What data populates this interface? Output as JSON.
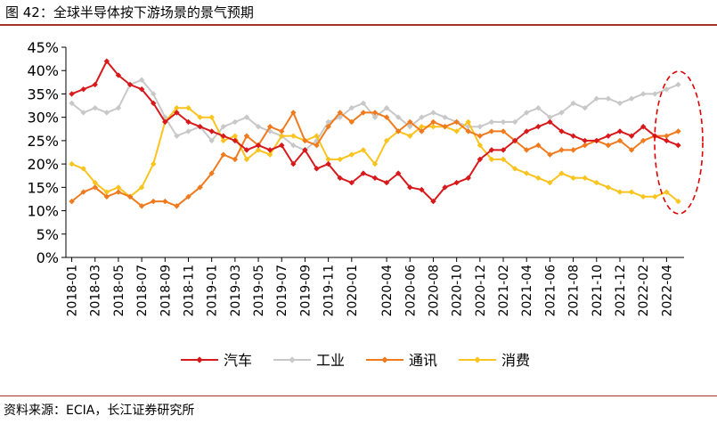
{
  "figure": {
    "title": "图 42：全球半导体按下游场景的景气预期",
    "source": "资料来源：ECIA，长江证券研究所"
  },
  "colors": {
    "auto": "#d7191c",
    "industry": "#c8c8c8",
    "comm": "#f07a1e",
    "consumer": "#fac31e",
    "rule": "#a33226",
    "highlight": "#e00000"
  },
  "chart_data": {
    "type": "line",
    "title": "",
    "xlabel": "",
    "ylabel": "",
    "ylim": [
      0,
      45
    ],
    "yticks": [
      "0%",
      "5%",
      "10%",
      "15%",
      "20%",
      "25%",
      "30%",
      "35%",
      "40%",
      "45%"
    ],
    "x": [
      "2018-01",
      "2018-02",
      "2018-03",
      "2018-04",
      "2018-05",
      "2018-06",
      "2018-07",
      "2018-08",
      "2018-09",
      "2018-10",
      "2018-11",
      "2018-12",
      "2019-01",
      "2019-02",
      "2019-03",
      "2019-04",
      "2019-05",
      "2019-06",
      "2019-07",
      "2019-08",
      "2019-09",
      "2019-10",
      "2019-11",
      "2019-12",
      "2020-01",
      "2020-02",
      "2020-03",
      "2020-04",
      "2020-05",
      "2020-06",
      "2020-07",
      "2020-08",
      "2020-09",
      "2020-10",
      "2020-11",
      "2020-12",
      "2021-01",
      "2021-02",
      "2021-03",
      "2021-04",
      "2021-05",
      "2021-06",
      "2021-07",
      "2021-08",
      "2021-09",
      "2021-10",
      "2021-11",
      "2021-12",
      "2022-01",
      "2022-02",
      "2022-03",
      "2022-04",
      "2022-05"
    ],
    "x_tick_labels": [
      "2018-01",
      "2018-03",
      "2018-05",
      "2018-07",
      "2018-09",
      "2018-11",
      "2019-01",
      "2019-03",
      "2019-05",
      "2019-07",
      "2019-09",
      "2019-11",
      "2020-01",
      "2020-04",
      "2020-06",
      "2020-08",
      "2020-10",
      "2020-12",
      "2021-02",
      "2021-04",
      "2021-06",
      "2021-08",
      "2021-10",
      "2021-12",
      "2022-02",
      "2022-04"
    ],
    "legend_position": "bottom",
    "grid": false,
    "series": [
      {
        "name": "汽车",
        "key": "auto",
        "values": [
          35,
          36,
          37,
          42,
          39,
          37,
          36,
          33,
          29,
          31,
          29,
          28,
          27,
          26,
          25,
          23,
          24,
          23,
          24,
          20,
          23,
          19,
          20,
          17,
          16,
          18,
          17,
          16,
          18,
          15,
          14.5,
          12,
          15,
          16,
          17,
          21,
          23,
          23,
          25,
          27,
          28,
          29,
          27,
          26,
          25,
          25,
          26,
          27,
          26,
          28,
          26,
          25,
          24
        ]
      },
      {
        "name": "工业",
        "key": "industry",
        "values": [
          33,
          31,
          32,
          31,
          32,
          37,
          38,
          35,
          30,
          26,
          27,
          28,
          25,
          28,
          29,
          30,
          28,
          27,
          26,
          24,
          23,
          25,
          29,
          30,
          32,
          33,
          30,
          32,
          30,
          28,
          30,
          31,
          30,
          29,
          28,
          28,
          29,
          29,
          29,
          31,
          32,
          30,
          31,
          33,
          32,
          34,
          34,
          33,
          34,
          35,
          35,
          36,
          37
        ]
      },
      {
        "name": "通讯",
        "key": "comm",
        "values": [
          12,
          14,
          15,
          13,
          14,
          13,
          11,
          12,
          12,
          11,
          13,
          15,
          18,
          22,
          21,
          26,
          24,
          28,
          27,
          31,
          25,
          24,
          28,
          31,
          29,
          31,
          31,
          30,
          27,
          29,
          27,
          29,
          28,
          29,
          27,
          26,
          27,
          27,
          25,
          23,
          24,
          22,
          23,
          23,
          24,
          25,
          24,
          25,
          23,
          25,
          26,
          26,
          27
        ]
      },
      {
        "name": "消费",
        "key": "consumer",
        "values": [
          20,
          19,
          16,
          14,
          15,
          13,
          15,
          20,
          29,
          32,
          32,
          30,
          30,
          25,
          26,
          21,
          23,
          22,
          26,
          26,
          25,
          26,
          21,
          21,
          22,
          23,
          20,
          25,
          27,
          26,
          28,
          28,
          28,
          27,
          29,
          24,
          21,
          21,
          19,
          18,
          17,
          16,
          18,
          17,
          17,
          16,
          15,
          14,
          14,
          13,
          13,
          14,
          12
        ]
      }
    ]
  }
}
